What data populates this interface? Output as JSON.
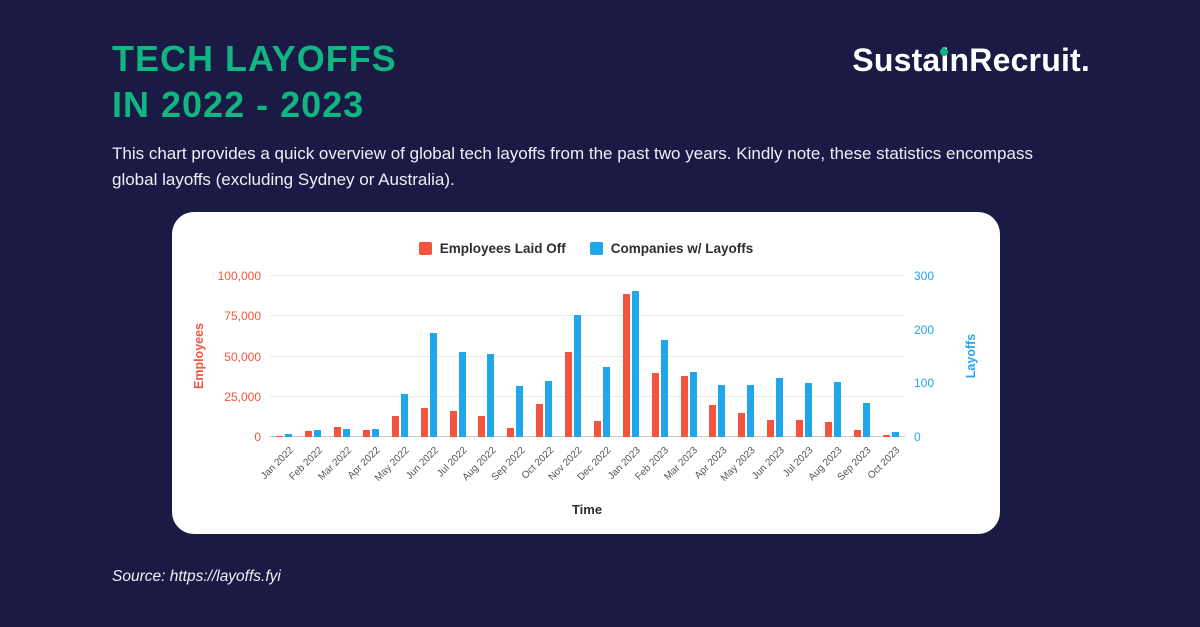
{
  "page": {
    "title_line1": "TECH LAYOFFS",
    "title_line2": "IN 2022 - 2023",
    "logo_text": "SustainRecruit.",
    "description": "This chart provides a quick overview of global tech layoffs from the past two years. Kindly note, these statistics encompass global layoffs (excluding Sydney or Australia).",
    "source": "Source: https://layoffs.fyi"
  },
  "colors": {
    "background": "#1a1a45",
    "title_green": "#10b582",
    "employees": "#f4543d",
    "companies": "#20a6ea",
    "card": "#ffffff"
  },
  "chart_data": {
    "type": "bar",
    "title": "",
    "xlabel": "Time",
    "ylabel_left": "Employees",
    "ylabel_right": "Layoffs",
    "legend": [
      "Employees Laid Off",
      "Companies w/ Layoffs"
    ],
    "legend_position": "top",
    "grid": true,
    "categories": [
      "Jan 2022",
      "Feb 2022",
      "Mar 2022",
      "Apr 2022",
      "May 2022",
      "Jun 2022",
      "Jul 2022",
      "Aug 2022",
      "Sep 2022",
      "Oct 2022",
      "Nov 2022",
      "Dec 2022",
      "Jan 2023",
      "Feb 2023",
      "Mar 2023",
      "Apr 2023",
      "May 2023",
      "Jun 2023",
      "Jul 2023",
      "Aug 2023",
      "Sep 2023",
      "Oct 2023"
    ],
    "series": [
      {
        "name": "Employees Laid Off",
        "axis": "left",
        "color": "#f4543d",
        "values": [
          600,
          3600,
          6200,
          4300,
          13000,
          18000,
          16000,
          13000,
          5800,
          20400,
          53000,
          10000,
          89000,
          40000,
          38000,
          20000,
          15000,
          10500,
          10500,
          9300,
          4500,
          1100
        ]
      },
      {
        "name": "Companies w/ Layoffs",
        "axis": "right",
        "color": "#20a6ea",
        "values": [
          5,
          13,
          15,
          15,
          80,
          193,
          158,
          155,
          95,
          105,
          228,
          130,
          272,
          180,
          122,
          96,
          96,
          110,
          100,
          102,
          64,
          10
        ]
      }
    ],
    "left_axis": {
      "min": 0,
      "max": 100000,
      "ticks": [
        0,
        25000,
        50000,
        75000,
        100000
      ]
    },
    "right_axis": {
      "min": 0,
      "max": 300,
      "ticks": [
        0,
        100,
        200,
        300
      ]
    }
  }
}
